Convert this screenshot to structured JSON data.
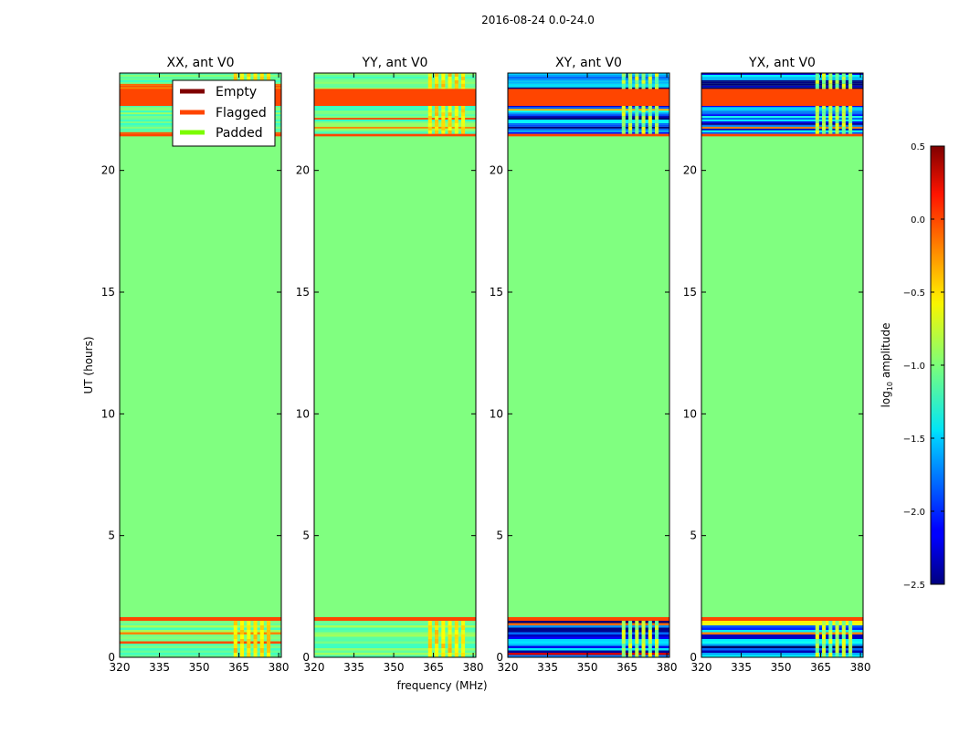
{
  "figure_title": "2016-08-24 0.0-24.0",
  "chart_data": {
    "type": "heatmap",
    "title": "2016-08-24 0.0-24.0",
    "xlabel": "frequency (MHz)",
    "ylabel": "UT (hours)",
    "xlim": [
      320,
      381
    ],
    "ylim": [
      0,
      24
    ],
    "xticks": [
      320,
      335,
      350,
      365,
      380
    ],
    "yticks": [
      0,
      5,
      10,
      15,
      20
    ],
    "panels": [
      {
        "title": "XX, ant V0",
        "kind": "copol"
      },
      {
        "title": "YY, ant V0",
        "kind": "copol"
      },
      {
        "title": "XY, ant V0",
        "kind": "cross"
      },
      {
        "title": "YX, ant V0",
        "kind": "cross"
      }
    ],
    "legend": {
      "placement": "top-right of first panel",
      "entries": [
        {
          "label": "Empty",
          "color": "#800000"
        },
        {
          "label": "Flagged",
          "color": "#ff4500"
        },
        {
          "label": "Padded",
          "color": "#7cfc00"
        }
      ]
    },
    "colorbar": {
      "label_prefix": "log",
      "label_sub": "10",
      "label_suffix": " amplitude",
      "range": [
        -2.5,
        0.5
      ],
      "ticks": [
        0.5,
        0.0,
        -0.5,
        -1.0,
        -1.5,
        -2.0,
        -2.5
      ],
      "tick_labels": [
        "0.5",
        "0.0",
        "−0.5",
        "−1.0",
        "−1.5",
        "−2.0",
        "−2.5"
      ]
    },
    "padded_value": -1.0,
    "flagged_bands_ut": [
      [
        1.5,
        1.65
      ],
      [
        21.4,
        21.5
      ],
      [
        22.65,
        23.35
      ]
    ],
    "data_blocks_ut": [
      [
        0,
        1.5
      ],
      [
        21.5,
        24
      ]
    ]
  }
}
